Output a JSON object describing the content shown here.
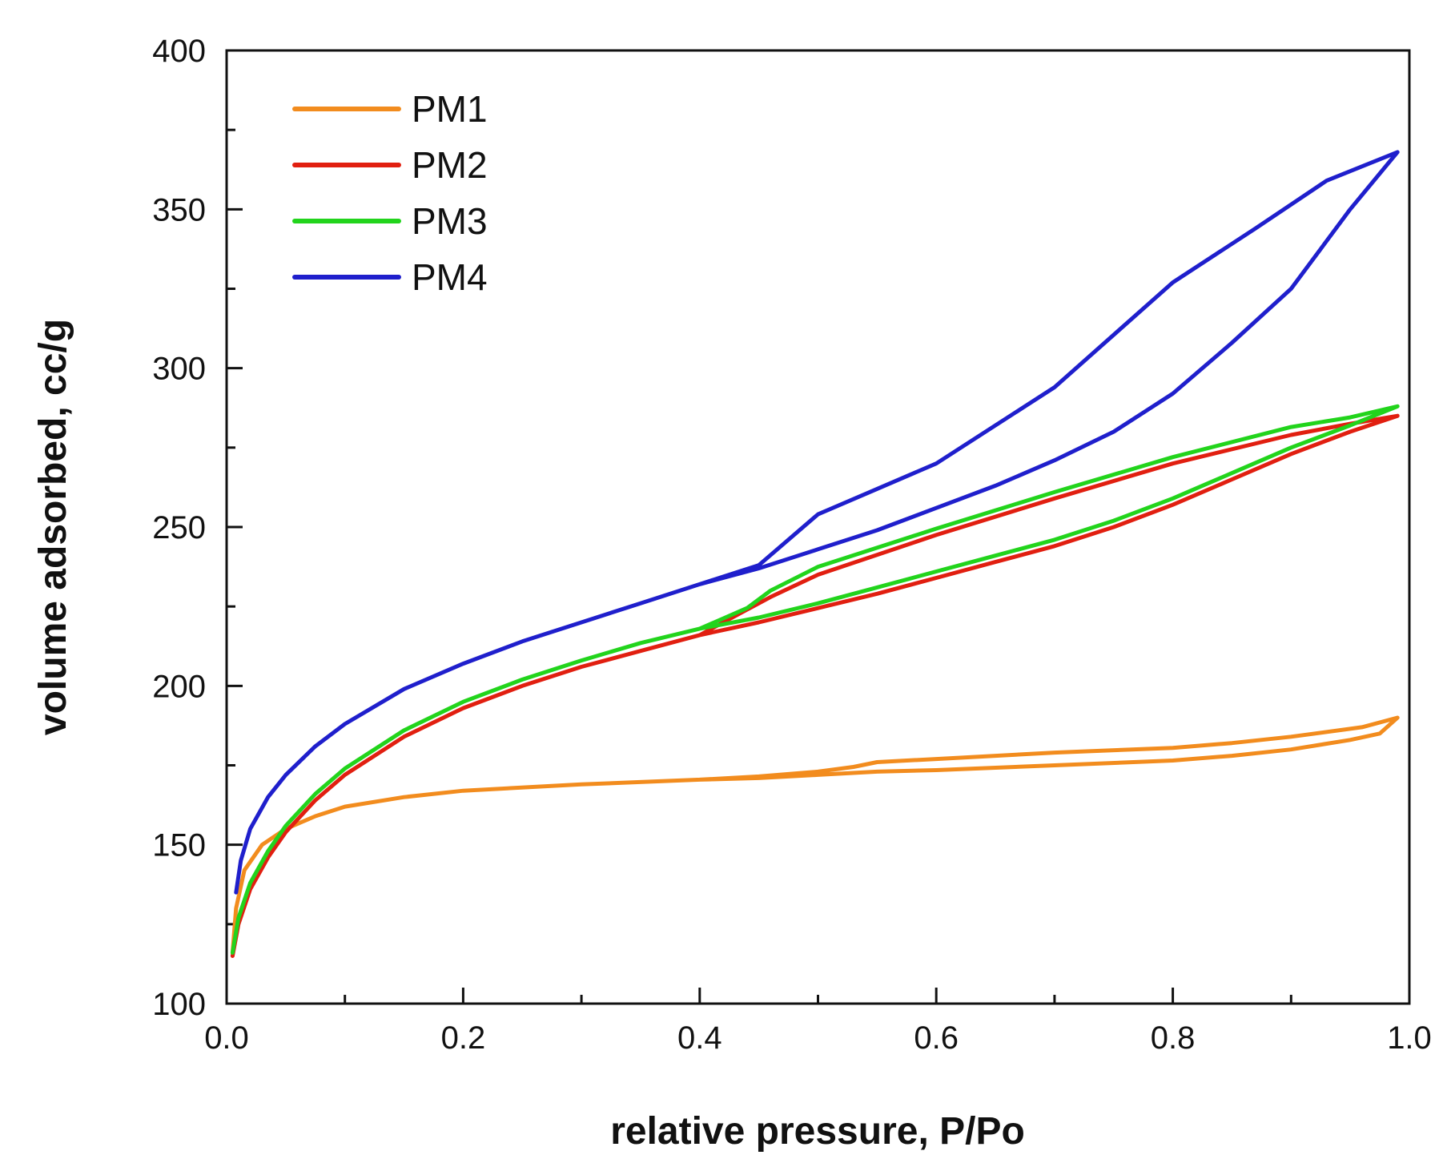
{
  "chart_data": {
    "type": "line",
    "title": "",
    "xlabel": "relative pressure, P/Po",
    "ylabel": "volume adsorbed, cc/g",
    "xlim": [
      0.0,
      1.0
    ],
    "ylim": [
      100,
      400
    ],
    "xticks": [
      0.0,
      0.2,
      0.4,
      0.6,
      0.8,
      1.0
    ],
    "xtick_labels": [
      "0.0",
      "0.2",
      "0.4",
      "0.6",
      "0.8",
      "1.0"
    ],
    "yticks": [
      100,
      150,
      200,
      250,
      300,
      350,
      400
    ],
    "ytick_labels": [
      "100",
      "150",
      "200",
      "250",
      "300",
      "350",
      "400"
    ],
    "grid": false,
    "legend_position": "top-left",
    "series": [
      {
        "name": "PM1",
        "color": "#f28c1e",
        "x": [
          0.005,
          0.008,
          0.015,
          0.03,
          0.05,
          0.075,
          0.1,
          0.15,
          0.2,
          0.3,
          0.4,
          0.45,
          0.5,
          0.55,
          0.6,
          0.7,
          0.8,
          0.85,
          0.9,
          0.95,
          0.975,
          0.99,
          0.96,
          0.9,
          0.85,
          0.8,
          0.7,
          0.6,
          0.55,
          0.53,
          0.5,
          0.45,
          0.4
        ],
        "y": [
          116,
          130,
          142,
          150,
          155,
          159,
          162,
          165,
          167,
          169,
          170.5,
          171,
          172,
          173,
          173.5,
          175,
          176.5,
          178,
          180,
          183,
          185,
          190,
          187,
          184,
          182,
          180.5,
          179,
          177,
          176,
          174.5,
          173,
          171.5,
          170.5
        ]
      },
      {
        "name": "PM2",
        "color": "#e11f10",
        "x": [
          0.005,
          0.01,
          0.02,
          0.035,
          0.05,
          0.075,
          0.1,
          0.15,
          0.2,
          0.25,
          0.3,
          0.35,
          0.4,
          0.45,
          0.5,
          0.55,
          0.6,
          0.65,
          0.7,
          0.75,
          0.8,
          0.85,
          0.9,
          0.95,
          0.99,
          0.95,
          0.9,
          0.8,
          0.7,
          0.6,
          0.5,
          0.46,
          0.44,
          0.4
        ],
        "y": [
          115,
          125,
          136,
          146,
          154,
          164,
          172,
          184,
          193,
          200,
          206,
          211,
          216,
          220,
          224.5,
          229,
          234,
          239,
          244,
          250,
          257,
          265,
          273,
          280,
          285,
          282.5,
          279,
          270,
          259,
          247.5,
          235,
          228,
          224,
          216
        ]
      },
      {
        "name": "PM3",
        "color": "#22d41c",
        "x": [
          0.005,
          0.01,
          0.02,
          0.035,
          0.05,
          0.075,
          0.1,
          0.15,
          0.2,
          0.25,
          0.3,
          0.35,
          0.4,
          0.45,
          0.5,
          0.55,
          0.6,
          0.65,
          0.7,
          0.75,
          0.8,
          0.85,
          0.9,
          0.95,
          0.99,
          0.95,
          0.9,
          0.8,
          0.7,
          0.6,
          0.5,
          0.46,
          0.44,
          0.4
        ],
        "y": [
          116,
          127,
          138,
          148,
          156,
          166,
          174,
          186,
          195,
          202,
          208,
          213.5,
          218,
          221.5,
          226,
          231,
          236,
          241,
          246,
          252,
          259,
          267,
          275,
          282,
          288,
          284.5,
          281.5,
          272,
          261,
          249.5,
          237.5,
          230,
          224.5,
          218
        ]
      },
      {
        "name": "PM4",
        "color": "#1f1fcc",
        "x": [
          0.008,
          0.012,
          0.02,
          0.035,
          0.05,
          0.075,
          0.1,
          0.15,
          0.2,
          0.25,
          0.3,
          0.35,
          0.4,
          0.45,
          0.5,
          0.55,
          0.6,
          0.65,
          0.7,
          0.75,
          0.8,
          0.85,
          0.9,
          0.95,
          0.99,
          0.93,
          0.87,
          0.8,
          0.7,
          0.6,
          0.55,
          0.5,
          0.45,
          0.4
        ],
        "y": [
          135,
          145,
          155,
          165,
          172,
          181,
          188,
          199,
          207,
          214,
          220,
          226,
          232,
          237,
          243,
          249,
          256,
          263,
          271,
          280,
          292,
          308,
          325,
          350,
          368,
          359,
          344,
          327,
          294,
          270,
          262,
          254,
          238,
          232
        ]
      }
    ]
  }
}
